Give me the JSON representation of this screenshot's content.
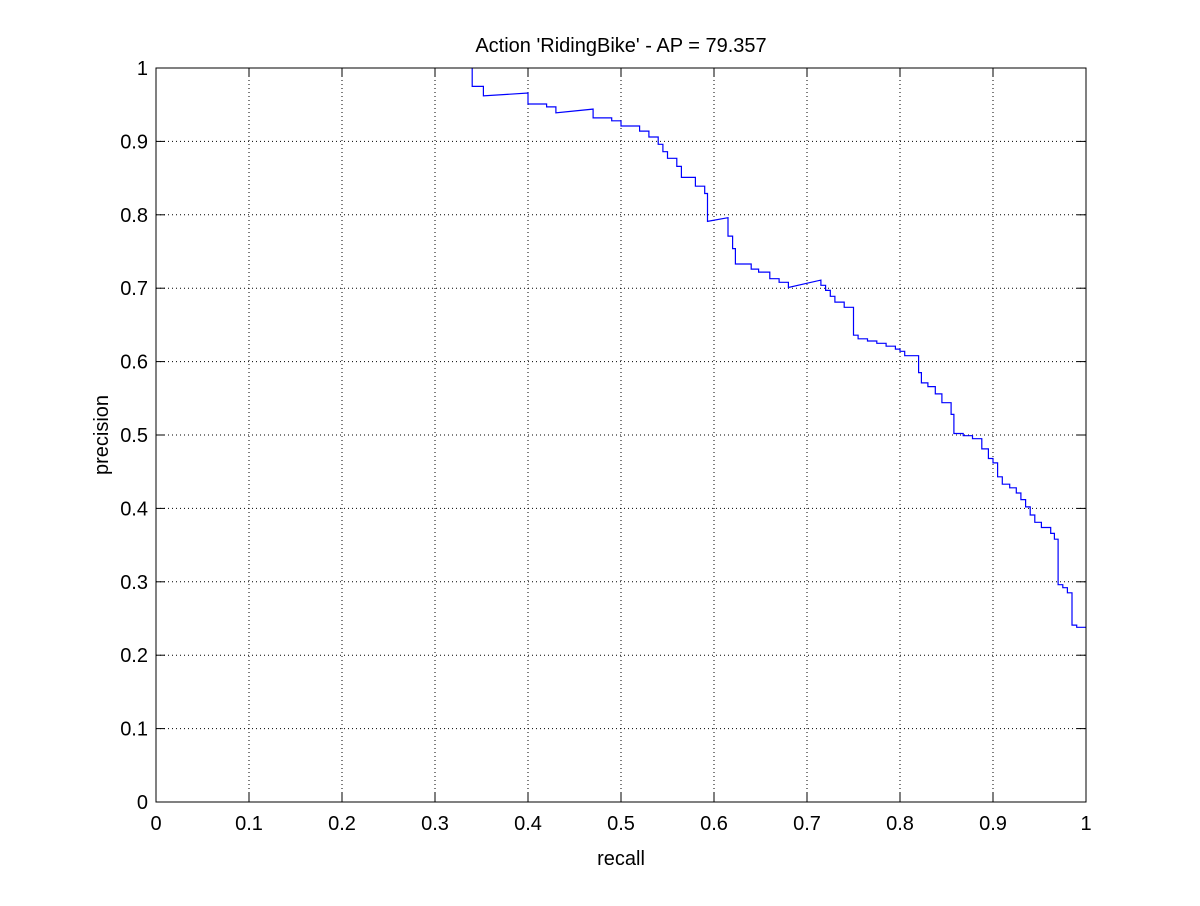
{
  "chart_data": {
    "type": "line",
    "title": "Action 'RidingBike' - AP = 79.357",
    "xlabel": "recall",
    "ylabel": "precision",
    "xlim": [
      0,
      1
    ],
    "ylim": [
      0,
      1
    ],
    "grid": true,
    "line_style": "stepped",
    "x_ticks": [
      0,
      0.1,
      0.2,
      0.3,
      0.4,
      0.5,
      0.6,
      0.7,
      0.8,
      0.9,
      1
    ],
    "x_tick_labels": [
      "0",
      "0.1",
      "0.2",
      "0.3",
      "0.4",
      "0.5",
      "0.6",
      "0.7",
      "0.8",
      "0.9",
      "1"
    ],
    "y_ticks": [
      0,
      0.1,
      0.2,
      0.3,
      0.4,
      0.5,
      0.6,
      0.7,
      0.8,
      0.9,
      1
    ],
    "y_tick_labels": [
      "0",
      "0.1",
      "0.2",
      "0.3",
      "0.4",
      "0.5",
      "0.6",
      "0.7",
      "0.8",
      "0.9",
      "1"
    ],
    "series": [
      {
        "color": "#0000ff",
        "points": [
          [
            0.34,
            1.0
          ],
          [
            0.34,
            0.975
          ],
          [
            0.352,
            0.975
          ],
          [
            0.352,
            0.962
          ],
          [
            0.4,
            0.966
          ],
          [
            0.4,
            0.951
          ],
          [
            0.42,
            0.951
          ],
          [
            0.42,
            0.947
          ],
          [
            0.43,
            0.947
          ],
          [
            0.43,
            0.939
          ],
          [
            0.47,
            0.944
          ],
          [
            0.47,
            0.932
          ],
          [
            0.49,
            0.932
          ],
          [
            0.49,
            0.928
          ],
          [
            0.5,
            0.928
          ],
          [
            0.5,
            0.921
          ],
          [
            0.52,
            0.921
          ],
          [
            0.52,
            0.914
          ],
          [
            0.53,
            0.914
          ],
          [
            0.53,
            0.906
          ],
          [
            0.54,
            0.906
          ],
          [
            0.54,
            0.896
          ],
          [
            0.545,
            0.896
          ],
          [
            0.545,
            0.886
          ],
          [
            0.55,
            0.886
          ],
          [
            0.55,
            0.877
          ],
          [
            0.56,
            0.877
          ],
          [
            0.56,
            0.866
          ],
          [
            0.565,
            0.866
          ],
          [
            0.565,
            0.851
          ],
          [
            0.58,
            0.851
          ],
          [
            0.58,
            0.839
          ],
          [
            0.59,
            0.839
          ],
          [
            0.59,
            0.829
          ],
          [
            0.593,
            0.829
          ],
          [
            0.593,
            0.791
          ],
          [
            0.615,
            0.796
          ],
          [
            0.615,
            0.771
          ],
          [
            0.62,
            0.771
          ],
          [
            0.62,
            0.754
          ],
          [
            0.623,
            0.754
          ],
          [
            0.623,
            0.733
          ],
          [
            0.64,
            0.733
          ],
          [
            0.64,
            0.726
          ],
          [
            0.648,
            0.726
          ],
          [
            0.648,
            0.722
          ],
          [
            0.66,
            0.722
          ],
          [
            0.66,
            0.713
          ],
          [
            0.67,
            0.713
          ],
          [
            0.67,
            0.708
          ],
          [
            0.68,
            0.708
          ],
          [
            0.68,
            0.701
          ],
          [
            0.715,
            0.711
          ],
          [
            0.715,
            0.704
          ],
          [
            0.72,
            0.704
          ],
          [
            0.72,
            0.697
          ],
          [
            0.725,
            0.697
          ],
          [
            0.725,
            0.689
          ],
          [
            0.73,
            0.689
          ],
          [
            0.73,
            0.681
          ],
          [
            0.74,
            0.681
          ],
          [
            0.74,
            0.674
          ],
          [
            0.75,
            0.674
          ],
          [
            0.75,
            0.636
          ],
          [
            0.755,
            0.636
          ],
          [
            0.755,
            0.631
          ],
          [
            0.765,
            0.631
          ],
          [
            0.765,
            0.628
          ],
          [
            0.775,
            0.628
          ],
          [
            0.775,
            0.625
          ],
          [
            0.785,
            0.625
          ],
          [
            0.785,
            0.621
          ],
          [
            0.795,
            0.621
          ],
          [
            0.795,
            0.617
          ],
          [
            0.8,
            0.617
          ],
          [
            0.8,
            0.614
          ],
          [
            0.805,
            0.614
          ],
          [
            0.805,
            0.608
          ],
          [
            0.82,
            0.608
          ],
          [
            0.82,
            0.585
          ],
          [
            0.823,
            0.585
          ],
          [
            0.823,
            0.571
          ],
          [
            0.83,
            0.571
          ],
          [
            0.83,
            0.566
          ],
          [
            0.838,
            0.566
          ],
          [
            0.838,
            0.556
          ],
          [
            0.845,
            0.556
          ],
          [
            0.845,
            0.544
          ],
          [
            0.855,
            0.544
          ],
          [
            0.855,
            0.528
          ],
          [
            0.858,
            0.528
          ],
          [
            0.858,
            0.502
          ],
          [
            0.868,
            0.502
          ],
          [
            0.868,
            0.499
          ],
          [
            0.878,
            0.499
          ],
          [
            0.878,
            0.495
          ],
          [
            0.888,
            0.495
          ],
          [
            0.888,
            0.481
          ],
          [
            0.895,
            0.481
          ],
          [
            0.895,
            0.468
          ],
          [
            0.9,
            0.468
          ],
          [
            0.9,
            0.462
          ],
          [
            0.905,
            0.462
          ],
          [
            0.905,
            0.443
          ],
          [
            0.91,
            0.443
          ],
          [
            0.91,
            0.433
          ],
          [
            0.918,
            0.433
          ],
          [
            0.918,
            0.428
          ],
          [
            0.925,
            0.428
          ],
          [
            0.925,
            0.421
          ],
          [
            0.93,
            0.421
          ],
          [
            0.93,
            0.412
          ],
          [
            0.935,
            0.412
          ],
          [
            0.935,
            0.402
          ],
          [
            0.94,
            0.402
          ],
          [
            0.94,
            0.391
          ],
          [
            0.945,
            0.391
          ],
          [
            0.945,
            0.381
          ],
          [
            0.952,
            0.381
          ],
          [
            0.952,
            0.374
          ],
          [
            0.962,
            0.374
          ],
          [
            0.962,
            0.366
          ],
          [
            0.966,
            0.366
          ],
          [
            0.966,
            0.358
          ],
          [
            0.97,
            0.358
          ],
          [
            0.97,
            0.296
          ],
          [
            0.975,
            0.296
          ],
          [
            0.975,
            0.292
          ],
          [
            0.98,
            0.292
          ],
          [
            0.98,
            0.285
          ],
          [
            0.985,
            0.285
          ],
          [
            0.985,
            0.241
          ],
          [
            0.99,
            0.241
          ],
          [
            0.99,
            0.238
          ],
          [
            1.0,
            0.238
          ]
        ]
      }
    ]
  }
}
